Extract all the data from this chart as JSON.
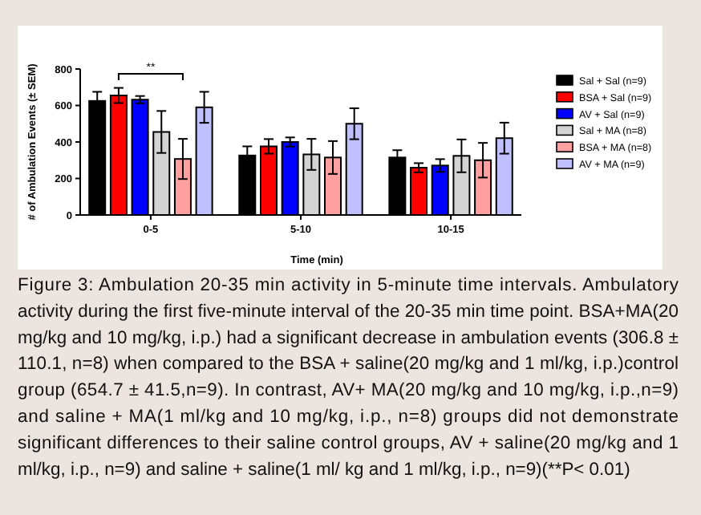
{
  "chart_data": {
    "type": "bar",
    "xlabel": "Time (min)",
    "ylabel": "# of Ambulation Events (± SEM)",
    "categories": [
      "0-5",
      "5-10",
      "10-15"
    ],
    "ylim": [
      0,
      800
    ],
    "yticks": [
      0,
      200,
      400,
      600,
      800
    ],
    "legend": "right",
    "series": [
      {
        "name": "Sal + Sal (n=9)",
        "color": "#000000",
        "values": [
          625,
          326,
          315
        ],
        "errors": [
          50,
          50,
          40
        ]
      },
      {
        "name": "BSA + Sal (n=9)",
        "color": "#ff0000",
        "values": [
          655,
          376,
          259
        ],
        "errors": [
          41.5,
          40,
          25
        ]
      },
      {
        "name": "AV + Sal (n=9)",
        "color": "#0000ff",
        "values": [
          632,
          400,
          271
        ],
        "errors": [
          20,
          25,
          35
        ]
      },
      {
        "name": "Sal + MA (n=8)",
        "color": "#d3d3d3",
        "values": [
          455,
          332,
          324
        ],
        "errors": [
          115,
          85,
          90
        ]
      },
      {
        "name": "BSA + MA (n=8)",
        "color": "#ffa0a0",
        "values": [
          307,
          315,
          300
        ],
        "errors": [
          110,
          90,
          95
        ]
      },
      {
        "name": "AV + MA (n=9)",
        "color": "#c0c0ff",
        "values": [
          590,
          500,
          421
        ],
        "errors": [
          85,
          85,
          85
        ]
      }
    ],
    "annotations": [
      "**",
      "Figure 3: Ambulation 20-35 min activity in 5-minute time intervals. Ambulatory activity during the first five-minute interval of the 20-35 min time point. BSA+MA(20 mg/kg and 10 mg/kg, i.p.) had a significant decrease in ambulation events (306.8 ± 110.1, n=8) when compared to the BSA + saline(20 mg/kg and 1 ml/kg, i.p.)control group (654.7 ± 41.5,n=9). In contrast, AV+ MA(20 mg/kg and 10 mg/kg, i.p.,n=9) and saline + MA(1 ml/kg and 10 mg/kg, i.p., n=8) groups did not demonstrate significant differences to their saline control groups, AV + saline(20 mg/kg and 1 ml/kg, i.p., n=9) and saline + saline(1 ml/ kg and 1 ml/kg, i.p., n=9)(**P< 0.01)"
    ]
  }
}
